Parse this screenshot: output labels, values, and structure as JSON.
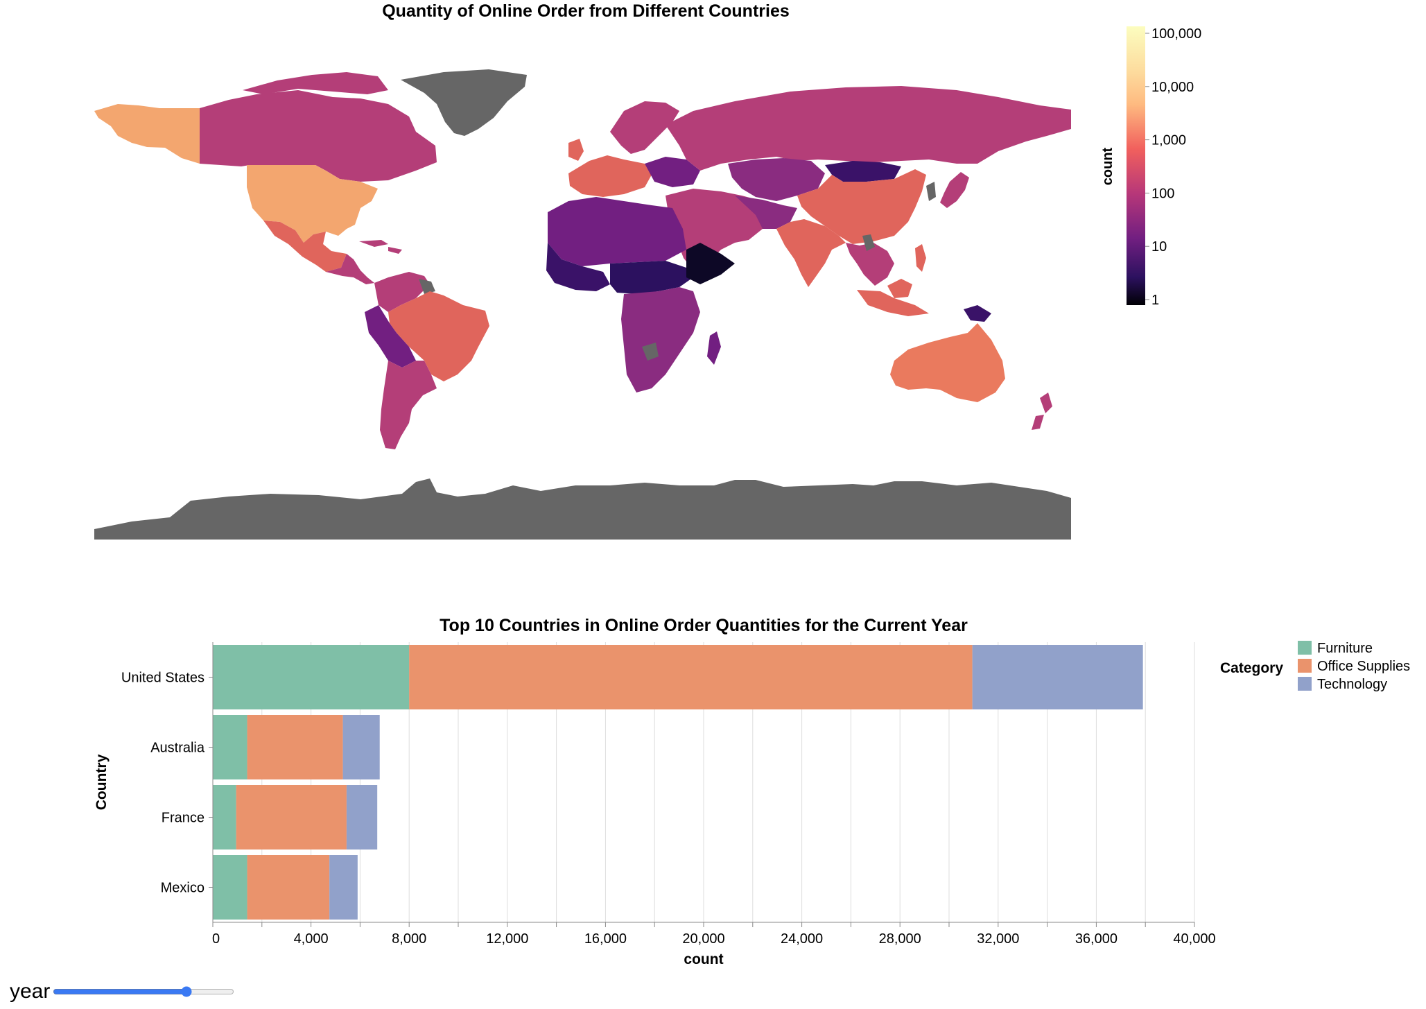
{
  "map": {
    "title": "Quantity of Online Order from Different Countries",
    "missing_color": "#666666",
    "legend": {
      "title": "count",
      "scale": "log",
      "colormap": "magma",
      "ticks": [
        "100,000",
        "10,000",
        "1,000",
        "100",
        "10",
        "1"
      ],
      "gradient_stops": [
        "#fcfdbf",
        "#feba80",
        "#f1605d",
        "#b73779",
        "#721f81",
        "#2c115f",
        "#000004"
      ]
    }
  },
  "chart_data": {
    "type": "bar",
    "orientation": "horizontal",
    "stacked": true,
    "title": "Top 10 Countries in Online Order Quantities for the Current Year",
    "xlabel": "count",
    "ylabel": "Country",
    "xlim": [
      0,
      40000
    ],
    "xticks": [
      0,
      4000,
      8000,
      12000,
      16000,
      20000,
      24000,
      28000,
      32000,
      36000,
      40000
    ],
    "xtick_labels": [
      "0",
      "4,000",
      "8,000",
      "12,000",
      "16,000",
      "20,000",
      "24,000",
      "28,000",
      "32,000",
      "36,000",
      "40,000"
    ],
    "grid": true,
    "legend_title": "Category",
    "legend_position": "top-right",
    "categories": [
      "United States",
      "Australia",
      "France",
      "Mexico"
    ],
    "series": [
      {
        "name": "Furniture",
        "color": "#7fbfa7",
        "values": [
          8000,
          1400,
          950,
          1400
        ]
      },
      {
        "name": "Office Supplies",
        "color": "#ea936c",
        "values": [
          22950,
          3900,
          4500,
          3350
        ]
      },
      {
        "name": "Technology",
        "color": "#91a1ca",
        "values": [
          6950,
          1500,
          1250,
          1150
        ]
      }
    ]
  },
  "control": {
    "label": "year",
    "value": 75
  }
}
